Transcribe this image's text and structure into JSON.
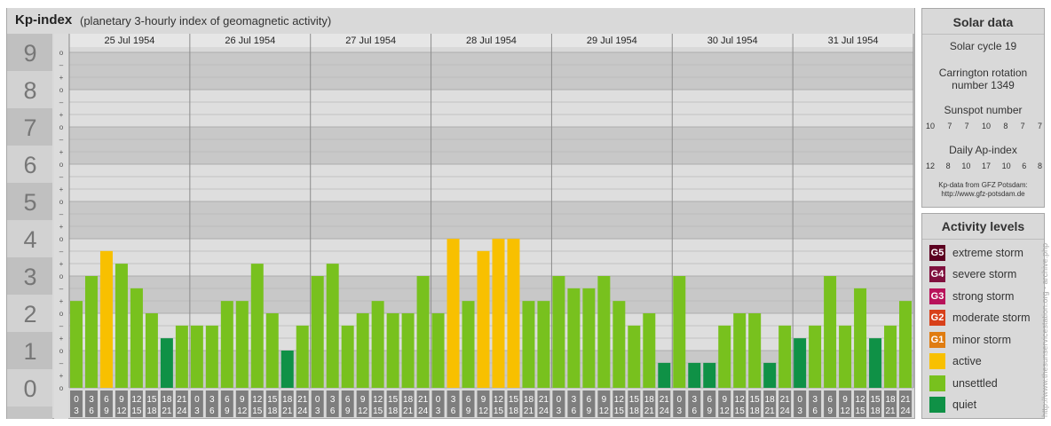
{
  "title": "Kp-index",
  "subtitle": "(planetary 3-hourly index of geomagnetic activity)",
  "chart_data": {
    "type": "bar",
    "y_range": [
      0,
      9
    ],
    "y_ticks": [
      "0",
      "1",
      "2",
      "3",
      "4",
      "5",
      "6",
      "7",
      "8",
      "9"
    ],
    "minor_labels": [
      "o",
      "+",
      "–",
      "o",
      "+",
      "–",
      "o",
      "+",
      "–",
      "o",
      "+",
      "–",
      "o",
      "+",
      "–",
      "o",
      "+",
      "–",
      "o",
      "+",
      "–",
      "o",
      "+",
      "–",
      "o",
      "+",
      "–",
      "o"
    ],
    "days": [
      "25 Jul 1954",
      "26 Jul 1954",
      "27 Jul 1954",
      "28 Jul 1954",
      "29 Jul 1954",
      "30 Jul 1954",
      "31 Jul 1954"
    ],
    "interval_starts": [
      "0",
      "3",
      "6",
      "9",
      "12",
      "15",
      "18",
      "21"
    ],
    "interval_ends": [
      "3",
      "6",
      "9",
      "12",
      "15",
      "18",
      "21",
      "24"
    ],
    "values": [
      [
        2.33,
        3.0,
        3.67,
        3.33,
        2.67,
        2.0,
        1.33,
        1.67
      ],
      [
        1.67,
        1.67,
        2.33,
        2.33,
        3.33,
        2.0,
        1.0,
        1.67
      ],
      [
        3.0,
        3.33,
        1.67,
        2.0,
        2.33,
        2.0,
        2.0,
        3.0
      ],
      [
        2.0,
        4.0,
        2.33,
        3.67,
        4.0,
        4.0,
        2.33,
        2.33
      ],
      [
        3.0,
        2.67,
        2.67,
        3.0,
        2.33,
        1.67,
        2.0,
        0.67
      ],
      [
        3.0,
        0.67,
        0.67,
        1.67,
        2.0,
        2.0,
        0.67,
        1.67
      ],
      [
        1.33,
        1.67,
        3.0,
        1.67,
        2.67,
        1.33,
        1.67,
        2.33
      ]
    ],
    "level_colors": {
      "quiet": "#0f9146",
      "unsettled": "#78c11e",
      "active": "#f8c000"
    }
  },
  "solar": {
    "title": "Solar data",
    "cycle": "Solar cycle 19",
    "carrington_line1": "Carrington rotation",
    "carrington_line2": "number 1349",
    "sunspot_label": "Sunspot number",
    "sunspot_values": [
      "10",
      "7",
      "7",
      "10",
      "8",
      "7",
      "7"
    ],
    "ap_label": "Daily Ap-index",
    "ap_values": [
      "12",
      "8",
      "10",
      "17",
      "10",
      "6",
      "8"
    ],
    "source_line1": "Kp-data from GFZ Potsdam:",
    "source_line2": "http://www.gfz-potsdam.de"
  },
  "levels": {
    "title": "Activity levels",
    "items": [
      {
        "badge": "G5",
        "label": "extreme storm",
        "color": "#5c0020"
      },
      {
        "badge": "G4",
        "label": "severe storm",
        "color": "#80103e"
      },
      {
        "badge": "G3",
        "label": "strong storm",
        "color": "#b8125a"
      },
      {
        "badge": "G2",
        "label": "moderate storm",
        "color": "#d8401a"
      },
      {
        "badge": "G1",
        "label": "minor storm",
        "color": "#e07c10"
      },
      {
        "badge": "",
        "label": "active",
        "color": "#f8c000"
      },
      {
        "badge": "",
        "label": "unsettled",
        "color": "#78c11e"
      },
      {
        "badge": "",
        "label": "quiet",
        "color": "#0f9146"
      }
    ]
  },
  "watermark": "http://www.thesunservicestation.org - archive.php"
}
